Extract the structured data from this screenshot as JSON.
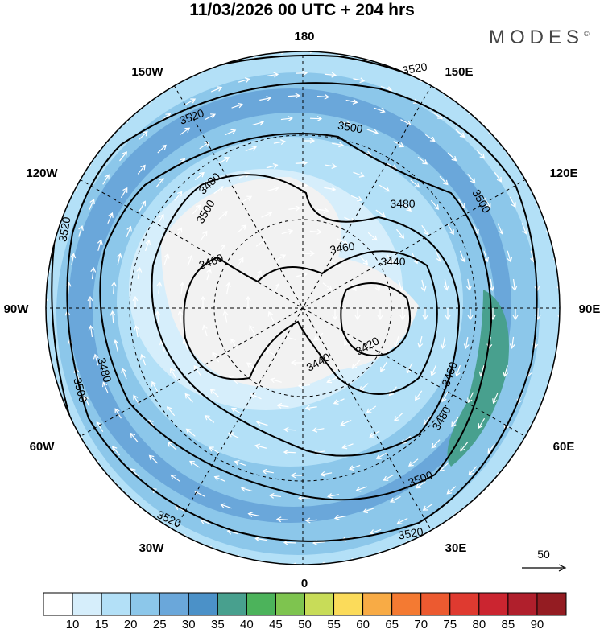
{
  "title": "11/03/2026  00 UTC  + 204 hrs",
  "logo": {
    "text": "MODES",
    "mark": "©"
  },
  "longitude_labels": {
    "top": "180",
    "bottom": "0",
    "left": "90W",
    "right": "90E",
    "nw": "150W",
    "ne": "150E",
    "wnw": "120W",
    "ene": "120E",
    "wsw": "60W",
    "ese": "60E",
    "sw": "30W",
    "se": "30E"
  },
  "contour_labels": [
    "3520",
    "3520",
    "3520",
    "3520",
    "3520",
    "3500",
    "3500",
    "3500",
    "3500",
    "3500",
    "3480",
    "3480",
    "3480",
    "3480",
    "3460",
    "3460",
    "3460",
    "3440",
    "3440",
    "3420"
  ],
  "reference_vector": {
    "label": "50"
  },
  "colorbar": {
    "colors": [
      "#ffffff",
      "#d6eefb",
      "#b3e0f7",
      "#8cc7ea",
      "#6aa7da",
      "#4b91c8",
      "#48a08e",
      "#4cb35b",
      "#7ec44f",
      "#c8dc58",
      "#fbdb5a",
      "#f8ab45",
      "#f47a32",
      "#ec5a30",
      "#df3a30",
      "#cb2530",
      "#b01f2c",
      "#941c22"
    ],
    "labels": [
      "10",
      "15",
      "20",
      "25",
      "30",
      "35",
      "40",
      "45",
      "50",
      "55",
      "60",
      "65",
      "70",
      "75",
      "80",
      "85",
      "90"
    ]
  }
}
